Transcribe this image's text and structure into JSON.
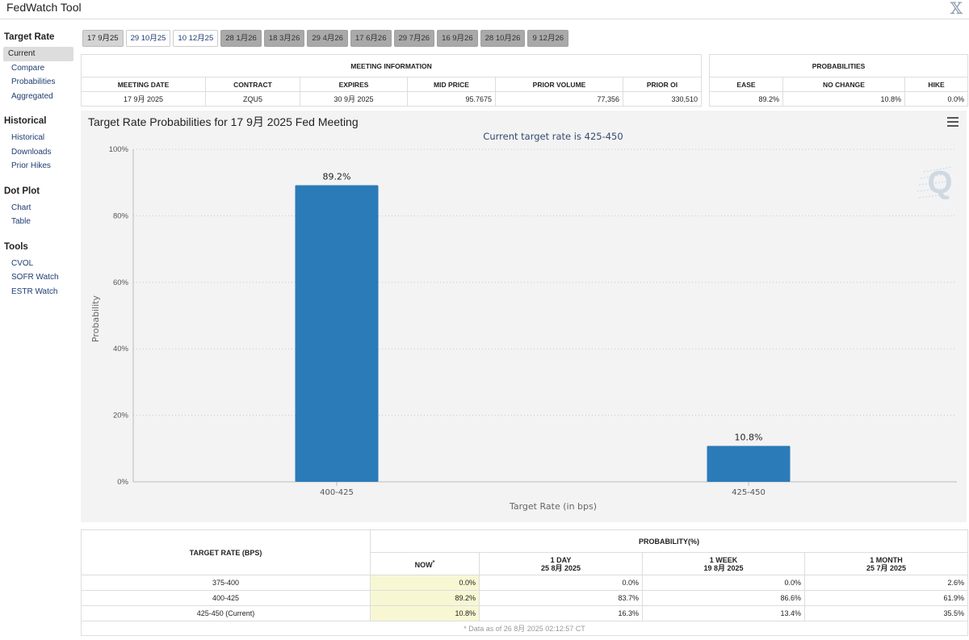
{
  "app": {
    "title": "FedWatch Tool",
    "close_glyph": "𝕏"
  },
  "sidebar": {
    "sections": [
      {
        "heading": "Target Rate",
        "items": [
          "Current",
          "Compare",
          "Probabilities",
          "Aggregated"
        ]
      },
      {
        "heading": "Historical",
        "items": [
          "Historical",
          "Downloads",
          "Prior Hikes"
        ]
      },
      {
        "heading": "Dot Plot",
        "items": [
          "Chart",
          "Table"
        ]
      },
      {
        "heading": "Tools",
        "items": [
          "CVOL",
          "SOFR Watch",
          "ESTR Watch"
        ]
      }
    ],
    "active_item": "Current"
  },
  "tabs": [
    {
      "label": "17 9月25",
      "state": "active"
    },
    {
      "label": "29 10月25",
      "state": "normal"
    },
    {
      "label": "10 12月25",
      "state": "normal"
    },
    {
      "label": "28 1月26",
      "state": "dim"
    },
    {
      "label": "18 3月26",
      "state": "dim"
    },
    {
      "label": "29 4月26",
      "state": "dim"
    },
    {
      "label": "17 6月26",
      "state": "dim"
    },
    {
      "label": "29 7月26",
      "state": "dim"
    },
    {
      "label": "16 9月26",
      "state": "dim"
    },
    {
      "label": "28 10月26",
      "state": "dim"
    },
    {
      "label": "9 12月26",
      "state": "dim"
    }
  ],
  "meeting_info": {
    "group_header": "MEETING INFORMATION",
    "headers": [
      "MEETING DATE",
      "CONTRACT",
      "EXPIRES",
      "MID PRICE",
      "PRIOR VOLUME",
      "PRIOR OI"
    ],
    "row": [
      "17 9月 2025",
      "ZQU5",
      "30 9月 2025",
      "95.7675",
      "77,356",
      "330,510"
    ]
  },
  "probabilities": {
    "group_header": "PROBABILITIES",
    "headers": [
      "EASE",
      "NO CHANGE",
      "HIKE"
    ],
    "row": [
      "89.2%",
      "10.8%",
      "0.0%"
    ]
  },
  "chart_data": {
    "type": "bar",
    "title": "Target Rate Probabilities for 17 9月 2025 Fed Meeting",
    "subtitle": "Current target rate is 425-450",
    "categories": [
      "400-425",
      "425-450"
    ],
    "values": [
      89.2,
      10.8
    ],
    "data_labels": [
      "89.2%",
      "10.8%"
    ],
    "xlabel": "Target Rate (in bps)",
    "ylabel": "Probability",
    "ylim": [
      0,
      100
    ],
    "yticks": [
      0,
      20,
      40,
      60,
      80,
      100
    ],
    "ytick_labels": [
      "0%",
      "20%",
      "40%",
      "60%",
      "80%",
      "100%"
    ],
    "grid": "horizontal dotted",
    "bar_color": "#2b7bb9",
    "watermark": "Q"
  },
  "bottom_table": {
    "rate_header": "TARGET RATE (BPS)",
    "prob_header": "PROBABILITY(%)",
    "columns": [
      {
        "line1": "NOW",
        "line2": "",
        "mark": "*"
      },
      {
        "line1": "1 DAY",
        "line2": "25 8月 2025"
      },
      {
        "line1": "1 WEEK",
        "line2": "19 8月 2025"
      },
      {
        "line1": "1 MONTH",
        "line2": "25 7月 2025"
      }
    ],
    "rows": [
      {
        "rate": "375-400",
        "values": [
          "0.0%",
          "0.0%",
          "0.0%",
          "2.6%"
        ]
      },
      {
        "rate": "400-425",
        "values": [
          "89.2%",
          "83.7%",
          "86.6%",
          "61.9%"
        ]
      },
      {
        "rate": "425-450 (Current)",
        "values": [
          "10.8%",
          "16.3%",
          "13.4%",
          "35.5%"
        ]
      }
    ],
    "footnote": "* Data as of 26 8月 2025 02:12:57 CT"
  }
}
